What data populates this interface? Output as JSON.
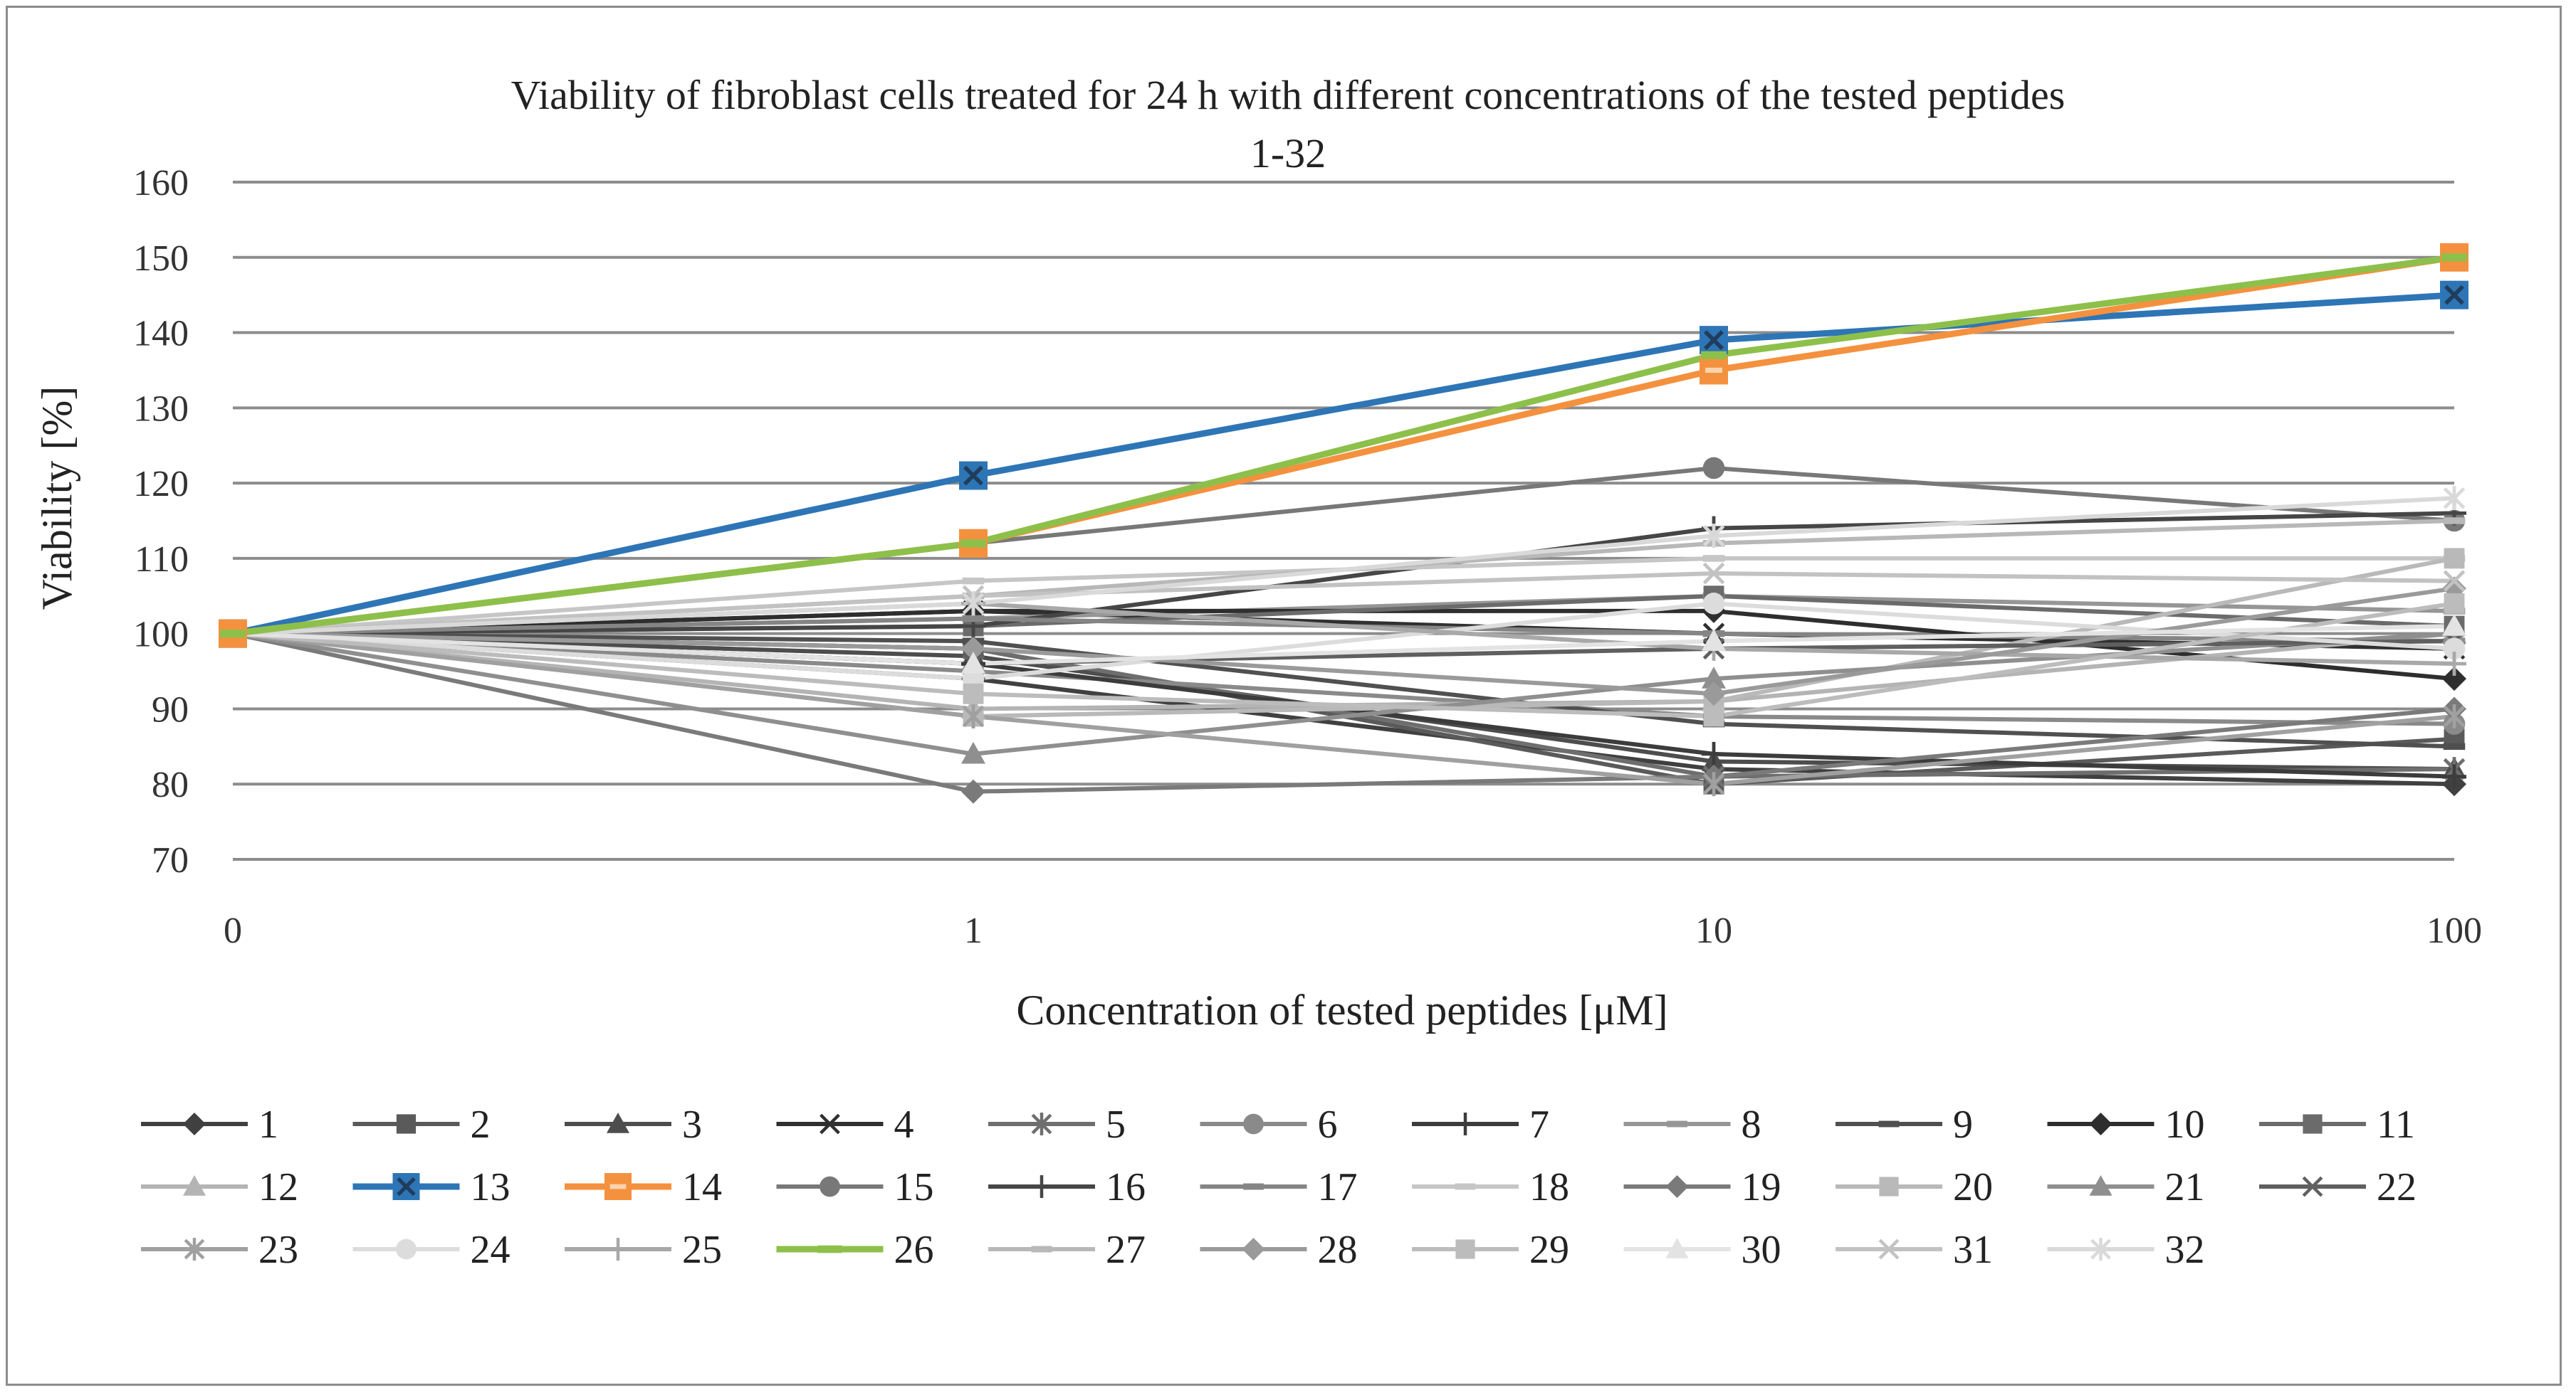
{
  "chart_data": {
    "type": "line",
    "title": "Viability of fibroblast cells treated for 24 h with different concentrations of the tested peptides",
    "subtitle": "1-32",
    "xlabel": "Concentration of tested peptides [μM]",
    "ylabel": "Viability [%]",
    "categories": [
      "0",
      "1",
      "10",
      "100"
    ],
    "y_ticks": [
      "70",
      "80",
      "90",
      "100",
      "110",
      "120",
      "130",
      "140",
      "150",
      "160"
    ],
    "ylim": [
      70,
      160
    ],
    "grid": "horizontal",
    "legend_position": "bottom",
    "series": [
      {
        "name": "1",
        "values": [
          100,
          94,
          82,
          80
        ],
        "color": "#404040",
        "marker": "diamond"
      },
      {
        "name": "2",
        "values": [
          100,
          98,
          80,
          86
        ],
        "color": "#5a5a5a",
        "marker": "square"
      },
      {
        "name": "3",
        "values": [
          100,
          97,
          83,
          82
        ],
        "color": "#4d4d4d",
        "marker": "triangle"
      },
      {
        "name": "4",
        "values": [
          100,
          103,
          100,
          98
        ],
        "color": "#303030",
        "marker": "x"
      },
      {
        "name": "5",
        "values": [
          100,
          98,
          81,
          82
        ],
        "color": "#6e6e6e",
        "marker": "star"
      },
      {
        "name": "6",
        "values": [
          100,
          95,
          89,
          88
        ],
        "color": "#8a8a8a",
        "marker": "circle"
      },
      {
        "name": "7",
        "values": [
          100,
          96,
          84,
          81
        ],
        "color": "#3c3c3c",
        "marker": "plus"
      },
      {
        "name": "8",
        "values": [
          100,
          102,
          105,
          103
        ],
        "color": "#969696",
        "marker": "dash"
      },
      {
        "name": "9",
        "values": [
          100,
          99,
          88,
          85
        ],
        "color": "#505050",
        "marker": "dash"
      },
      {
        "name": "10",
        "values": [
          100,
          103,
          103,
          94
        ],
        "color": "#2e2e2e",
        "marker": "diamond"
      },
      {
        "name": "11",
        "values": [
          100,
          101,
          105,
          101
        ],
        "color": "#6b6b6b",
        "marker": "square"
      },
      {
        "name": "12",
        "values": [
          100,
          90,
          91,
          100
        ],
        "color": "#b4b4b4",
        "marker": "triangle"
      },
      {
        "name": "13",
        "values": [
          100,
          121,
          139,
          145
        ],
        "color": "#2e75b6",
        "marker": "x-square"
      },
      {
        "name": "14",
        "values": [
          100,
          112,
          135,
          150
        ],
        "color": "#f4913f",
        "marker": "dash-square"
      },
      {
        "name": "15",
        "values": [
          100,
          112,
          122,
          115
        ],
        "color": "#787878",
        "marker": "circle"
      },
      {
        "name": "16",
        "values": [
          100,
          101,
          114,
          116
        ],
        "color": "#464646",
        "marker": "plus"
      },
      {
        "name": "17",
        "values": [
          100,
          102,
          100,
          99
        ],
        "color": "#858585",
        "marker": "dash"
      },
      {
        "name": "18",
        "values": [
          100,
          107,
          110,
          110
        ],
        "color": "#c6c6c6",
        "marker": "dash"
      },
      {
        "name": "19",
        "values": [
          100,
          79,
          81,
          90
        ],
        "color": "#7a7a7a",
        "marker": "diamond"
      },
      {
        "name": "20",
        "values": [
          100,
          89,
          91,
          110
        ],
        "color": "#b9b9b9",
        "marker": "square"
      },
      {
        "name": "21",
        "values": [
          100,
          84,
          94,
          100
        ],
        "color": "#8f8f8f",
        "marker": "triangle"
      },
      {
        "name": "22",
        "values": [
          100,
          96,
          98,
          99
        ],
        "color": "#5f5f5f",
        "marker": "x"
      },
      {
        "name": "23",
        "values": [
          100,
          89,
          80,
          89
        ],
        "color": "#a0a0a0",
        "marker": "star"
      },
      {
        "name": "24",
        "values": [
          100,
          94,
          104,
          98
        ],
        "color": "#dcdcdc",
        "marker": "circle"
      },
      {
        "name": "25",
        "values": [
          100,
          104,
          98,
          96
        ],
        "color": "#a8a8a8",
        "marker": "plus"
      },
      {
        "name": "26",
        "values": [
          100,
          112,
          137,
          150
        ],
        "color": "#8dc04b",
        "marker": "dash"
      },
      {
        "name": "27",
        "values": [
          100,
          105,
          112,
          115
        ],
        "color": "#b8b8b8",
        "marker": "dash"
      },
      {
        "name": "28",
        "values": [
          100,
          98,
          92,
          106
        ],
        "color": "#9a9a9a",
        "marker": "diamond"
      },
      {
        "name": "29",
        "values": [
          100,
          92,
          89,
          104
        ],
        "color": "#bcbcbc",
        "marker": "square"
      },
      {
        "name": "30",
        "values": [
          100,
          96,
          99,
          101
        ],
        "color": "#e3e3e3",
        "marker": "triangle"
      },
      {
        "name": "31",
        "values": [
          100,
          105,
          108,
          107
        ],
        "color": "#c2c2c2",
        "marker": "x"
      },
      {
        "name": "32",
        "values": [
          100,
          104,
          113,
          118
        ],
        "color": "#d9d9d9",
        "marker": "star"
      }
    ]
  }
}
